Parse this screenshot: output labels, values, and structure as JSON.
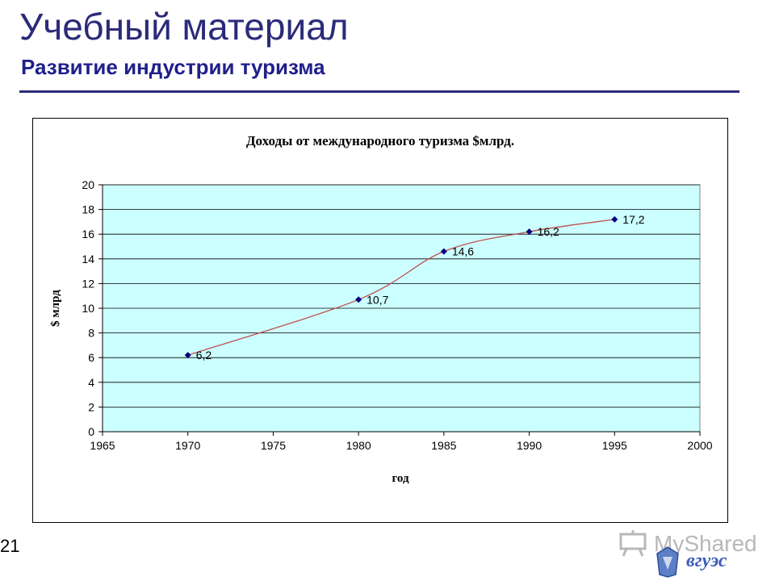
{
  "slide": {
    "title": "Учебный материал",
    "subtitle": "Развитие индустрии туризма",
    "page_number": "21"
  },
  "watermark": {
    "text": "MyShared",
    "logo_text": "вгуэс",
    "icon": "presentation-board-icon"
  },
  "colors": {
    "title": "#2b2b7a",
    "plot_background": "#ccffff",
    "line": "#c0504d",
    "marker": "#000080",
    "gridline": "#000000"
  },
  "chart_data": {
    "type": "line",
    "title": "Доходы от международного туризма $млрд.",
    "xlabel": "год",
    "ylabel": "$ млрд",
    "xlim": [
      1965,
      2000
    ],
    "ylim": [
      0,
      20
    ],
    "x_ticks": [
      "1965",
      "1970",
      "1975",
      "1980",
      "1985",
      "1990",
      "1995",
      "2000"
    ],
    "y_ticks": [
      "0",
      "2",
      "4",
      "6",
      "8",
      "10",
      "12",
      "14",
      "16",
      "18",
      "20"
    ],
    "grid": true,
    "legend": "none",
    "smoothed": true,
    "series": [
      {
        "x": [
          1970,
          1980,
          1985,
          1990,
          1995
        ],
        "values": [
          6.2,
          10.7,
          14.6,
          16.2,
          17.2
        ],
        "labels": [
          "6,2",
          "10,7",
          "14,6",
          "16,2",
          "17,2"
        ]
      }
    ]
  }
}
